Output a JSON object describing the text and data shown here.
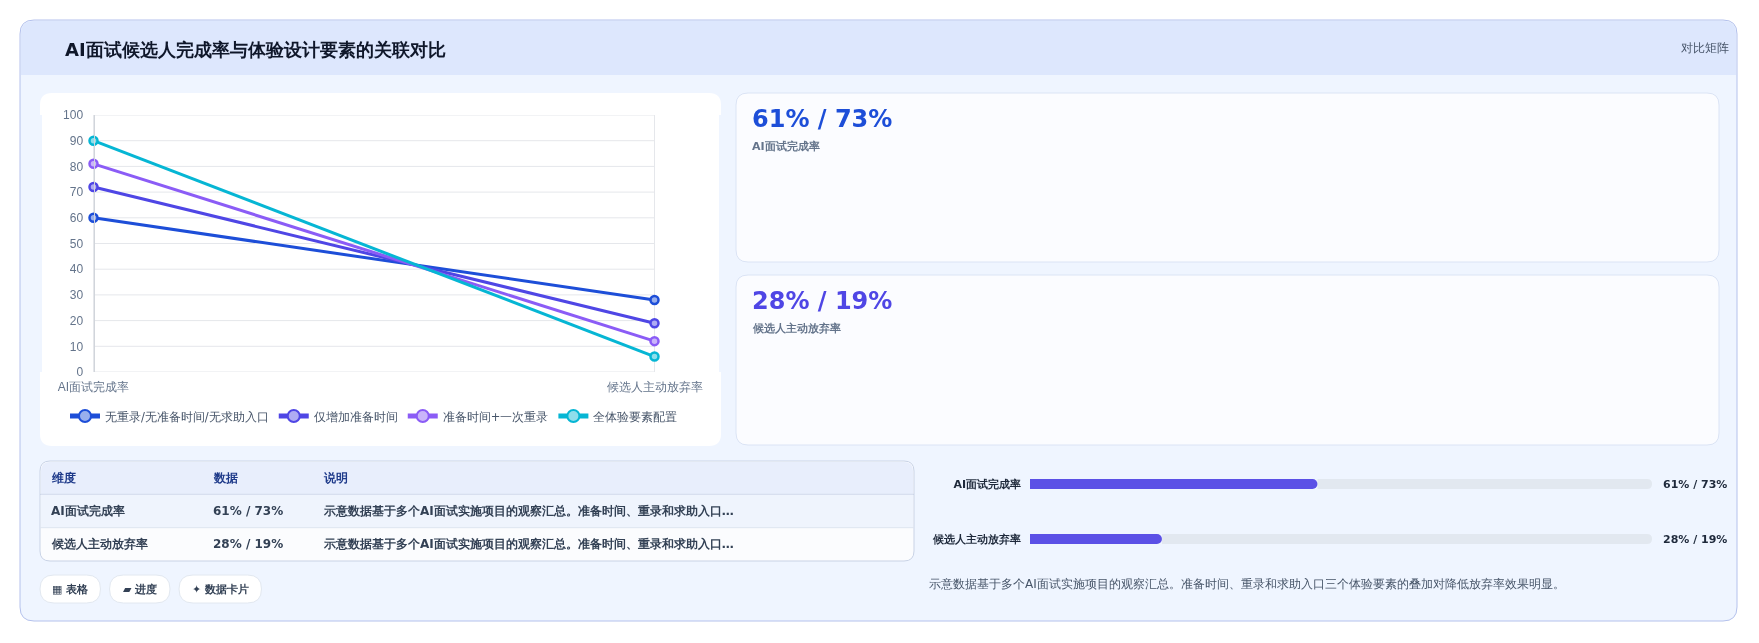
{
  "chart_data": [
    {
      "type": "line",
      "title": "AI面试候选人完成率与体验设计要素的关联对比",
      "annotations": [
        "对比矩阵"
      ],
      "categories": [
        "AI面试完成率",
        "候选人主动放弃率"
      ],
      "series": [
        {
          "name": "无重录/无准备时间/无求助入口",
          "color": "#1d4ed8",
          "values": [
            60,
            28
          ]
        },
        {
          "name": "仅增加准备时间",
          "color": "#4f46e5",
          "values": [
            72,
            19
          ]
        },
        {
          "name": "准备时间+一次重录",
          "color": "#8b5cf6",
          "values": [
            81,
            12
          ]
        },
        {
          "name": "全体验要素配置",
          "color": "#06b6d4",
          "values": [
            90,
            6
          ]
        }
      ],
      "ylim": [
        0,
        100
      ],
      "yticks": [
        0,
        10,
        20,
        30,
        40,
        50,
        60,
        70,
        80,
        90,
        100
      ],
      "grid": true,
      "legend": "bottom",
      "marker": "circle"
    },
    {
      "type": "other",
      "title": "61% / 73%",
      "subtitle": "AI面试完成率",
      "color": "#1d4ed8"
    },
    {
      "type": "other",
      "title": "28% / 19%",
      "subtitle": "候选人主动放弃率",
      "color": "#4f46e5"
    },
    {
      "type": "other",
      "categories": [
        "维度",
        "数据",
        "说明"
      ],
      "cell_labels": [
        [
          "AI面试完成率",
          "61% / 73%",
          "示意数据基于多个AI面试实施项目的观察汇总。准备时间、重录和求助入口…"
        ],
        [
          "候选人主动放弃率",
          "28% / 19%",
          "示意数据基于多个AI面试实施项目的观察汇总。准备时间、重录和求助入口…"
        ]
      ],
      "annotations": [
        "▦ 表格",
        "▰ 进度",
        "✦ 数据卡片"
      ]
    },
    {
      "type": "bar",
      "orientation": "horizontal",
      "categories": [
        "AI面试完成率",
        "候选人主动放弃率"
      ],
      "series": [
        {
          "color": "#5b50e6",
          "values": [
            61,
            28
          ],
          "value_labels": [
            "61% / 73%",
            "28% / 19%"
          ]
        }
      ],
      "xlim": [
        0,
        132
      ],
      "tick_labels": "y",
      "annotations": [
        "示意数据基于多个AI面试实施项目的观察汇总。准备时间、重录和求助入口三个体验要素的叠加对降低放弃率效果明显。"
      ]
    }
  ]
}
